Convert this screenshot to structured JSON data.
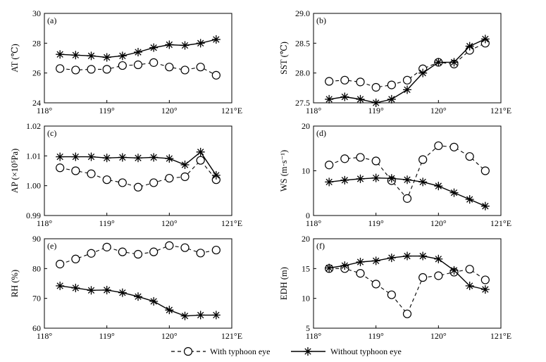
{
  "colors": {
    "line": "#000000",
    "background": "#ffffff"
  },
  "legend": {
    "with_label": "With typhoon eye",
    "without_label": "Without typhoon eye"
  },
  "chart_data": [
    {
      "id": "a",
      "panel_label": "(a)",
      "type": "line",
      "ylabel": "AT (℃)",
      "xlabel": "",
      "xlim": [
        118,
        121
      ],
      "x_ticks": [
        "118°",
        "119°",
        "120°",
        "121°E"
      ],
      "ylim": [
        24,
        30
      ],
      "y_ticks": [
        "24",
        "26",
        "28",
        "30"
      ],
      "x": [
        118.25,
        118.5,
        118.75,
        119.0,
        119.25,
        119.5,
        119.75,
        120.0,
        120.25,
        120.5,
        120.75
      ],
      "series": [
        {
          "name": "With typhoon eye",
          "style": "dashed-circle",
          "values": [
            26.3,
            26.2,
            26.25,
            26.25,
            26.5,
            26.55,
            26.7,
            26.4,
            26.2,
            26.4,
            25.85
          ]
        },
        {
          "name": "Without typhoon eye",
          "style": "solid-star",
          "values": [
            27.25,
            27.2,
            27.15,
            27.05,
            27.15,
            27.4,
            27.7,
            27.9,
            27.85,
            28.0,
            28.25
          ]
        }
      ]
    },
    {
      "id": "b",
      "panel_label": "(b)",
      "type": "line",
      "ylabel": "SST (℃)",
      "xlabel": "",
      "xlim": [
        118,
        121
      ],
      "x_ticks": [
        "118°",
        "119°",
        "120°",
        "121°E"
      ],
      "ylim": [
        27.5,
        29.0
      ],
      "y_ticks": [
        "27.5",
        "28.0",
        "28.5",
        "29.0"
      ],
      "x": [
        118.25,
        118.5,
        118.75,
        119.0,
        119.25,
        119.5,
        119.75,
        120.0,
        120.25,
        120.5,
        120.75
      ],
      "series": [
        {
          "name": "With typhoon eye",
          "style": "dashed-circle",
          "values": [
            27.86,
            27.88,
            27.85,
            27.76,
            27.8,
            27.88,
            28.07,
            28.18,
            28.15,
            28.38,
            28.5
          ]
        },
        {
          "name": "Without typhoon eye",
          "style": "solid-star",
          "values": [
            27.56,
            27.6,
            27.56,
            27.5,
            27.56,
            27.72,
            28.0,
            28.18,
            28.18,
            28.45,
            28.57
          ]
        }
      ]
    },
    {
      "id": "c",
      "panel_label": "(c)",
      "type": "line",
      "ylabel": "AP (×10⁵Pa)",
      "xlabel": "",
      "xlim": [
        118,
        121
      ],
      "x_ticks": [
        "118°",
        "119°",
        "120°",
        "121°E"
      ],
      "ylim": [
        0.99,
        1.02
      ],
      "y_ticks": [
        "0.99",
        "1.00",
        "1.01",
        "1.02"
      ],
      "x": [
        118.25,
        118.5,
        118.75,
        119.0,
        119.25,
        119.5,
        119.75,
        120.0,
        120.25,
        120.5,
        120.75
      ],
      "series": [
        {
          "name": "With typhoon eye",
          "style": "dashed-circle",
          "values": [
            1.006,
            1.005,
            1.004,
            1.002,
            1.001,
            0.9995,
            1.001,
            1.0025,
            1.003,
            1.0085,
            1.002
          ]
        },
        {
          "name": "Without typhoon eye",
          "style": "solid-star",
          "values": [
            1.0097,
            1.0097,
            1.0097,
            1.0093,
            1.0095,
            1.0093,
            1.0095,
            1.0091,
            1.007,
            1.0113,
            1.0035
          ]
        }
      ]
    },
    {
      "id": "d",
      "panel_label": "(d)",
      "type": "line",
      "ylabel": "WS (m·s⁻¹)",
      "xlabel": "",
      "xlim": [
        118,
        121
      ],
      "x_ticks": [
        "118°",
        "119°",
        "120°",
        "121°E"
      ],
      "ylim": [
        0,
        20
      ],
      "y_ticks": [
        "0",
        "10",
        "20"
      ],
      "x": [
        118.25,
        118.5,
        118.75,
        119.0,
        119.25,
        119.5,
        119.75,
        120.0,
        120.25,
        120.5,
        120.75
      ],
      "series": [
        {
          "name": "With typhoon eye",
          "style": "dashed-circle",
          "values": [
            11.3,
            12.7,
            13.0,
            12.2,
            7.8,
            3.8,
            12.5,
            15.6,
            15.3,
            13.2,
            10.0
          ]
        },
        {
          "name": "Without typhoon eye",
          "style": "solid-star",
          "values": [
            7.5,
            7.9,
            8.2,
            8.4,
            8.3,
            8.0,
            7.5,
            6.6,
            5.1,
            3.6,
            2.1
          ]
        }
      ]
    },
    {
      "id": "e",
      "panel_label": "(e)",
      "type": "line",
      "ylabel": "RH (%)",
      "xlabel": "",
      "xlim": [
        118,
        121
      ],
      "x_ticks": [
        "118°",
        "119°",
        "120°",
        "121°E"
      ],
      "ylim": [
        60,
        90
      ],
      "y_ticks": [
        "60",
        "70",
        "80",
        "90"
      ],
      "x": [
        118.25,
        118.5,
        118.75,
        119.0,
        119.25,
        119.5,
        119.75,
        120.0,
        120.25,
        120.5,
        120.75
      ],
      "series": [
        {
          "name": "With typhoon eye",
          "style": "dashed-circle",
          "values": [
            81.5,
            83.2,
            85.1,
            87.2,
            85.6,
            84.8,
            85.6,
            87.7,
            87.0,
            85.2,
            86.2
          ]
        },
        {
          "name": "Without typhoon eye",
          "style": "solid-star",
          "values": [
            74.2,
            73.5,
            72.7,
            72.8,
            71.9,
            70.6,
            69.0,
            66.1,
            64.1,
            64.4,
            64.4
          ]
        }
      ]
    },
    {
      "id": "f",
      "panel_label": "(f)",
      "type": "line",
      "ylabel": "EDH (m)",
      "xlabel": "",
      "xlim": [
        118,
        121
      ],
      "x_ticks": [
        "118°",
        "119°",
        "120°",
        "121°E"
      ],
      "ylim": [
        5,
        20
      ],
      "y_ticks": [
        "5",
        "10",
        "15",
        "20"
      ],
      "x": [
        118.25,
        118.5,
        118.75,
        119.0,
        119.25,
        119.5,
        119.75,
        120.0,
        120.25,
        120.5,
        120.75
      ],
      "series": [
        {
          "name": "With typhoon eye",
          "style": "dashed-circle",
          "values": [
            15.0,
            15.0,
            14.2,
            12.4,
            10.6,
            7.4,
            13.5,
            13.8,
            14.4,
            14.9,
            13.1
          ]
        },
        {
          "name": "Without typhoon eye",
          "style": "solid-star",
          "values": [
            15.1,
            15.5,
            16.1,
            16.3,
            16.8,
            17.1,
            17.1,
            16.6,
            14.7,
            12.1,
            11.5
          ]
        }
      ]
    }
  ]
}
